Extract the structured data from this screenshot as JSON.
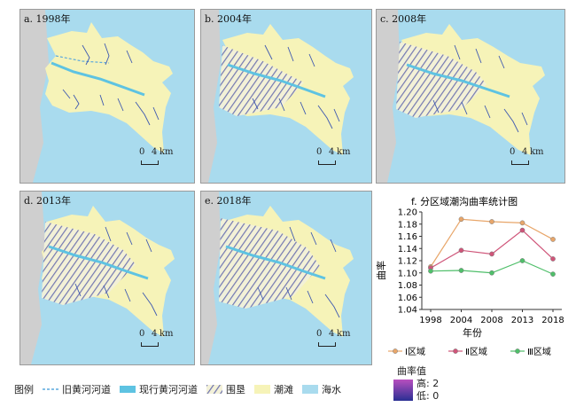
{
  "colors": {
    "sea": "#a9dbee",
    "land": "#f6f3b8",
    "grey_land": "#cfcfcf",
    "old_river": "#5aa8dd",
    "new_river": "#5ec3e2",
    "reclaim_hatch": "#6d72b0",
    "channel_high": "#b94fbf",
    "channel_low": "#2a2f93",
    "zone1": "#e8a66a",
    "zone2": "#cf5579",
    "zone3": "#4fbf6a"
  },
  "panels": [
    {
      "label": "a. 1998年",
      "scale_zero": "0",
      "scale_dist": "4",
      "scale_unit": "km"
    },
    {
      "label": "b. 2004年",
      "scale_zero": "0",
      "scale_dist": "4",
      "scale_unit": "km"
    },
    {
      "label": "c. 2008年",
      "scale_zero": "0",
      "scale_dist": "4",
      "scale_unit": "km"
    },
    {
      "label": "d. 2013年",
      "scale_zero": "0",
      "scale_dist": "4",
      "scale_unit": "km"
    },
    {
      "label": "e. 2018年",
      "scale_zero": "0",
      "scale_dist": "4",
      "scale_unit": "km"
    }
  ],
  "legend": {
    "title": "图例",
    "old_river": "旧黄河河道",
    "new_river": "现行黄河河道",
    "reclaim": "围垦",
    "tidal_flat": "潮滩",
    "sea": "海水"
  },
  "curvature_legend": {
    "title": "曲率值",
    "high": "高: 2",
    "low": "低: 0"
  },
  "chart_data": {
    "type": "line",
    "title": "f. 分区域潮沟曲率统计图",
    "xlabel": "年份",
    "ylabel": "曲率",
    "categories": [
      "1998",
      "2004",
      "2008",
      "2013",
      "2018"
    ],
    "ylim": [
      1.04,
      1.2
    ],
    "yticks": [
      "1.20",
      "1.18",
      "1.16",
      "1.14",
      "1.12",
      "1.10",
      "1.08",
      "1.06",
      "1.04"
    ],
    "legend_position": "bottom",
    "series": [
      {
        "name": "Ⅰ区域",
        "values": [
          1.11,
          1.188,
          1.184,
          1.182,
          1.155
        ]
      },
      {
        "name": "Ⅱ区域",
        "values": [
          1.108,
          1.137,
          1.131,
          1.17,
          1.123
        ]
      },
      {
        "name": "Ⅲ区域",
        "values": [
          1.103,
          1.104,
          1.1,
          1.12,
          1.098
        ]
      }
    ]
  }
}
